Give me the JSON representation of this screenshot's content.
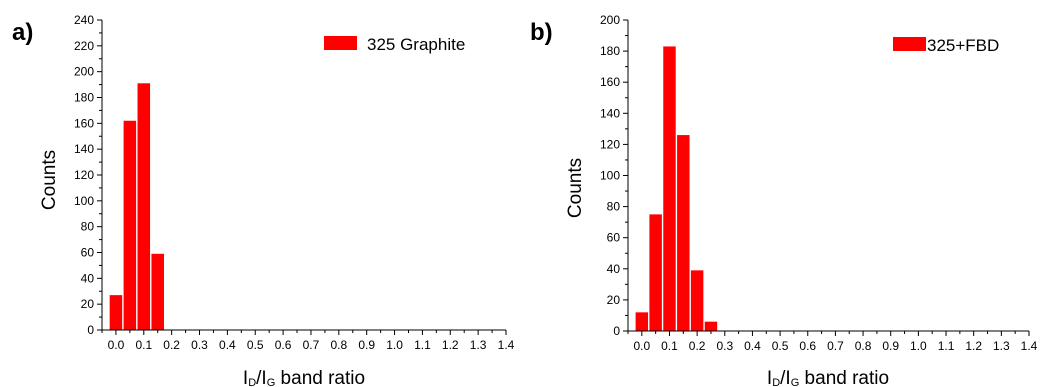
{
  "chart_data": [
    {
      "type": "bar",
      "panel_label": "a)",
      "legend": "325 Graphite",
      "x": [
        0.0,
        0.05,
        0.1,
        0.15
      ],
      "values": [
        27,
        162,
        191,
        59
      ],
      "xlim": [
        -0.05,
        1.4
      ],
      "ylim": [
        0,
        240
      ],
      "xticks": [
        "0.0",
        "0.1",
        "0.2",
        "0.3",
        "0.4",
        "0.5",
        "0.6",
        "0.7",
        "0.8",
        "0.9",
        "1.0",
        "1.1",
        "1.2",
        "1.3",
        "1.4"
      ],
      "yticks": [
        "0",
        "20",
        "40",
        "60",
        "80",
        "100",
        "120",
        "140",
        "160",
        "180",
        "200",
        "220",
        "240"
      ],
      "ylabel": "Counts",
      "xlabel": {
        "i1": "I",
        "s1": "D",
        "mid": "/I",
        "s2": "G",
        "rest": " band ratio"
      },
      "bar_color": "#ff0000",
      "grid": false,
      "legend_position": "top-right"
    },
    {
      "type": "bar",
      "panel_label": "b)",
      "legend": "325+FBD",
      "x": [
        0.0,
        0.05,
        0.1,
        0.15,
        0.2,
        0.25
      ],
      "values": [
        12,
        75,
        183,
        126,
        39,
        6
      ],
      "xlim": [
        -0.05,
        1.4
      ],
      "ylim": [
        0,
        200
      ],
      "xticks": [
        "0.0",
        "0.1",
        "0.2",
        "0.3",
        "0.4",
        "0.5",
        "0.6",
        "0.7",
        "0.8",
        "0.9",
        "1.0",
        "1.1",
        "1.2",
        "1.3",
        "1.4"
      ],
      "yticks": [
        "0",
        "20",
        "40",
        "60",
        "80",
        "100",
        "120",
        "140",
        "160",
        "180",
        "200"
      ],
      "ylabel": "Counts",
      "xlabel": {
        "i1": "I",
        "s1": "D",
        "mid": "/I",
        "s2": "G",
        "rest": " band ratio"
      },
      "bar_color": "#ff0000",
      "grid": false,
      "legend_position": "top-right"
    }
  ]
}
